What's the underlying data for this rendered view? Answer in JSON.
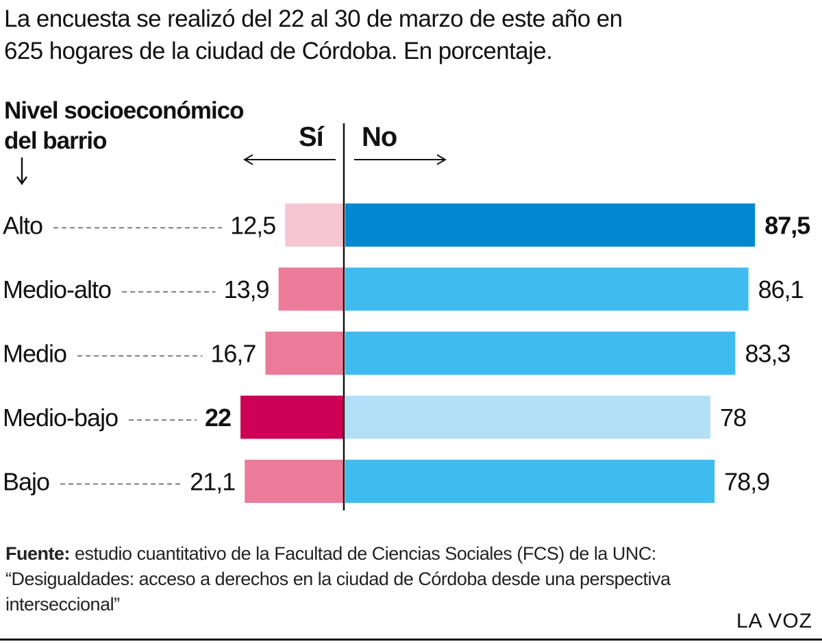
{
  "intro": {
    "line1": "La encuesta se realizó del 22 al 30 de marzo de este año en",
    "line2": "625 hogares de la ciudad de Córdoba. En porcentaje."
  },
  "group_title": {
    "line1": "Nivel socioeconómico",
    "line2": "del barrio"
  },
  "source": {
    "label": "Fuente:",
    "text": " estudio cuantitativo de la Facultad de Ciencias Sociales (FCS) de la UNC: “Desigualdades: acceso a derechos en la ciudad de Córdoba desde una perspectiva interseccional”"
  },
  "brand": "LA VOZ",
  "colors": {
    "si_highlight": "#cc0055",
    "si_default": "#ec7b9a",
    "si_light": "#f6c6d2",
    "no_highlight": "#0088d1",
    "no_default": "#3fbcef",
    "no_light": "#b3dff6",
    "axis": "#111111",
    "leader": "#555555"
  },
  "chart_data": {
    "type": "bar",
    "orientation": "horizontal-diverging",
    "categories": [
      "Alto",
      "Medio-alto",
      "Medio",
      "Medio-bajo",
      "Bajo"
    ],
    "series": [
      {
        "name": "Sí",
        "values": [
          12.5,
          13.9,
          16.7,
          22,
          21.1
        ],
        "labels": [
          "12,5",
          "13,9",
          "16,7",
          "22",
          "21,1"
        ],
        "styles": [
          "light",
          "default",
          "default",
          "highlight",
          "default"
        ]
      },
      {
        "name": "No",
        "values": [
          87.5,
          86.1,
          83.3,
          78,
          78.9
        ],
        "labels": [
          "87,5",
          "86,1",
          "83,3",
          "78",
          "78,9"
        ],
        "styles": [
          "highlight",
          "default",
          "default",
          "light",
          "default"
        ]
      }
    ],
    "xlim": [
      0,
      100
    ],
    "grid": false
  }
}
